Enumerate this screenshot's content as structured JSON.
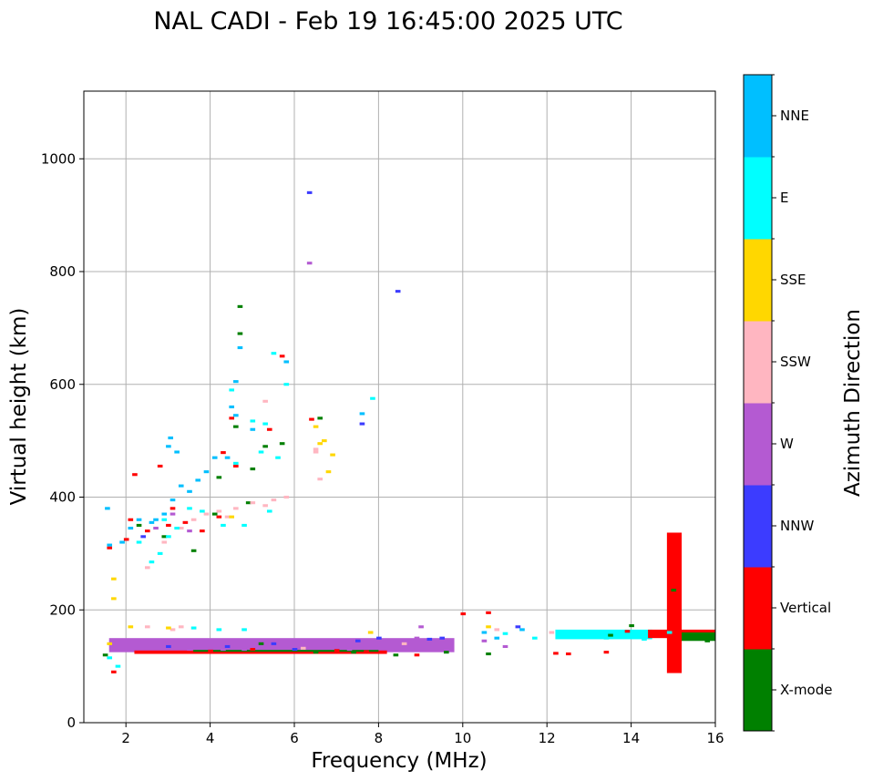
{
  "chart_data": {
    "type": "scatter",
    "title": "NAL CADI - Feb 19 16:45:00 2025 UTC",
    "xlabel": "Frequency (MHz)",
    "ylabel": "Virtual height (km)",
    "xlim": [
      1,
      16
    ],
    "ylim": [
      0,
      1120
    ],
    "xticks": [
      2,
      4,
      6,
      8,
      10,
      12,
      14,
      16
    ],
    "yticks": [
      0,
      200,
      400,
      600,
      800,
      1000
    ],
    "grid": true,
    "cell_size": {
      "freq_mhz": 0.1,
      "height_km": 5
    },
    "colorbar": {
      "label": "Azimuth Direction",
      "categories": [
        {
          "name": "X-mode",
          "color": "#008000"
        },
        {
          "name": "Vertical",
          "color": "#ff0000"
        },
        {
          "name": "NNW",
          "color": "#3c3cff"
        },
        {
          "name": "W",
          "color": "#b45ad2"
        },
        {
          "name": "SSW",
          "color": "#ffb6c1"
        },
        {
          "name": "SSE",
          "color": "#ffd700"
        },
        {
          "name": "E",
          "color": "#00ffff"
        },
        {
          "name": "NNE",
          "color": "#00bfff"
        }
      ]
    },
    "series": [
      {
        "name": "X-mode",
        "points": [
          [
            3.6,
            305
          ],
          [
            4.1,
            370
          ],
          [
            4.6,
            525
          ],
          [
            4.7,
            738
          ],
          [
            4.7,
            690
          ],
          [
            4.9,
            390
          ],
          [
            5.3,
            490
          ],
          [
            5.7,
            495
          ],
          [
            6.6,
            540
          ],
          [
            2.3,
            350
          ],
          [
            2.9,
            330
          ],
          [
            1.5,
            120
          ],
          [
            5.2,
            140
          ],
          [
            6.5,
            125
          ],
          [
            8.4,
            120
          ],
          [
            9.6,
            125
          ],
          [
            10.6,
            122
          ],
          [
            13.5,
            155
          ],
          [
            14.0,
            172
          ],
          [
            15.0,
            235
          ],
          [
            15.5,
            150
          ],
          [
            15.8,
            145
          ],
          [
            4.2,
            435
          ],
          [
            5.0,
            450
          ],
          [
            7.4,
            125
          ]
        ]
      },
      {
        "name": "Vertical",
        "points": [
          [
            2.2,
            440
          ],
          [
            2.8,
            455
          ],
          [
            3.1,
            380
          ],
          [
            3.4,
            355
          ],
          [
            3.8,
            340
          ],
          [
            4.2,
            365
          ],
          [
            4.5,
            540
          ],
          [
            5.4,
            520
          ],
          [
            5.7,
            650
          ],
          [
            4.3,
            479
          ],
          [
            4.6,
            455
          ],
          [
            2.0,
            325
          ],
          [
            1.6,
            310
          ],
          [
            1.7,
            90
          ],
          [
            3.5,
            125
          ],
          [
            4.0,
            127
          ],
          [
            5.0,
            130
          ],
          [
            7.0,
            128
          ],
          [
            7.7,
            126
          ],
          [
            8.9,
            120
          ],
          [
            10.0,
            193
          ],
          [
            10.6,
            195
          ],
          [
            12.2,
            123
          ],
          [
            12.5,
            122
          ],
          [
            13.4,
            125
          ],
          [
            13.9,
            162
          ],
          [
            2.5,
            340
          ],
          [
            3.0,
            350
          ],
          [
            6.4,
            538
          ],
          [
            2.1,
            360
          ]
        ]
      },
      {
        "name": "NNW",
        "points": [
          [
            6.35,
            940
          ],
          [
            8.45,
            765
          ],
          [
            7.6,
            530
          ],
          [
            2.4,
            330
          ],
          [
            6.0,
            130
          ],
          [
            7.5,
            145
          ],
          [
            8.0,
            150
          ],
          [
            9.5,
            150
          ],
          [
            11.3,
            170
          ],
          [
            4.4,
            135
          ],
          [
            5.5,
            140
          ],
          [
            3.0,
            135
          ],
          [
            9.2,
            148
          ]
        ]
      },
      {
        "name": "W",
        "points": [
          [
            6.35,
            815
          ],
          [
            2.7,
            345
          ],
          [
            3.5,
            340
          ],
          [
            3.1,
            370
          ],
          [
            5.2,
            135
          ],
          [
            5.6,
            145
          ],
          [
            6.6,
            135
          ],
          [
            6.9,
            140
          ],
          [
            7.3,
            130
          ],
          [
            8.3,
            140
          ],
          [
            8.9,
            150
          ],
          [
            9.0,
            170
          ],
          [
            10.5,
            145
          ],
          [
            11.0,
            135
          ],
          [
            3.5,
            130
          ],
          [
            2.8,
            140
          ],
          [
            4.3,
            130
          ],
          [
            3.9,
            140
          ],
          [
            4.8,
            130
          ]
        ]
      },
      {
        "name": "SSW",
        "points": [
          [
            2.5,
            275
          ],
          [
            2.9,
            320
          ],
          [
            3.3,
            345
          ],
          [
            3.6,
            360
          ],
          [
            3.9,
            370
          ],
          [
            4.2,
            375
          ],
          [
            4.6,
            380
          ],
          [
            5.0,
            390
          ],
          [
            5.3,
            385
          ],
          [
            5.5,
            395
          ],
          [
            5.8,
            400
          ],
          [
            6.5,
            485
          ],
          [
            6.6,
            432
          ],
          [
            6.5,
            480
          ],
          [
            3.1,
            165
          ],
          [
            3.6,
            168
          ],
          [
            3.3,
            170
          ],
          [
            2.5,
            170
          ],
          [
            8.6,
            140
          ],
          [
            10.8,
            165
          ],
          [
            12.1,
            160
          ],
          [
            6.2,
            132
          ],
          [
            5.3,
            570
          ],
          [
            4.4,
            365
          ]
        ]
      },
      {
        "name": "SSE",
        "points": [
          [
            1.7,
            255
          ],
          [
            1.7,
            220
          ],
          [
            4.5,
            365
          ],
          [
            6.7,
            500
          ],
          [
            6.8,
            445
          ],
          [
            6.5,
            525
          ],
          [
            6.9,
            475
          ],
          [
            1.6,
            140
          ],
          [
            2.1,
            170
          ],
          [
            3.0,
            168
          ],
          [
            7.8,
            160
          ],
          [
            10.6,
            170
          ],
          [
            6.6,
            495
          ]
        ]
      },
      {
        "name": "E",
        "points": [
          [
            1.6,
            115
          ],
          [
            1.8,
            100
          ],
          [
            2.6,
            285
          ],
          [
            2.8,
            300
          ],
          [
            3.2,
            345
          ],
          [
            3.8,
            375
          ],
          [
            4.3,
            350
          ],
          [
            4.8,
            350
          ],
          [
            5.2,
            480
          ],
          [
            5.4,
            375
          ],
          [
            5.6,
            470
          ],
          [
            5.8,
            600
          ],
          [
            7.85,
            575
          ],
          [
            5.5,
            655
          ],
          [
            3.6,
            168
          ],
          [
            4.2,
            165
          ],
          [
            4.8,
            165
          ],
          [
            11.0,
            158
          ],
          [
            11.7,
            150
          ],
          [
            12.5,
            155
          ],
          [
            13.0,
            160
          ],
          [
            13.4,
            150
          ],
          [
            14.3,
            148
          ],
          [
            14.9,
            160
          ],
          [
            2.3,
            320
          ],
          [
            3.0,
            330
          ],
          [
            4.6,
            460
          ],
          [
            5.0,
            535
          ],
          [
            4.5,
            590
          ],
          [
            5.3,
            530
          ],
          [
            2.9,
            360
          ],
          [
            3.5,
            380
          ]
        ]
      },
      {
        "name": "NNE",
        "points": [
          [
            1.55,
            380
          ],
          [
            1.6,
            315
          ],
          [
            1.9,
            320
          ],
          [
            2.1,
            345
          ],
          [
            2.3,
            360
          ],
          [
            2.6,
            355
          ],
          [
            2.9,
            370
          ],
          [
            3.1,
            395
          ],
          [
            3.3,
            420
          ],
          [
            3.5,
            410
          ],
          [
            3.7,
            430
          ],
          [
            3.9,
            445
          ],
          [
            4.1,
            470
          ],
          [
            4.4,
            470
          ],
          [
            4.6,
            545
          ],
          [
            4.7,
            665
          ],
          [
            4.6,
            605
          ],
          [
            5.0,
            520
          ],
          [
            5.8,
            640
          ],
          [
            7.6,
            548
          ],
          [
            10.5,
            160
          ],
          [
            10.8,
            150
          ],
          [
            11.4,
            165
          ],
          [
            3.05,
            505
          ],
          [
            3.0,
            490
          ],
          [
            2.7,
            360
          ],
          [
            3.2,
            480
          ],
          [
            4.5,
            560
          ]
        ]
      }
    ],
    "bands": [
      {
        "name": "E-layer W",
        "color": "#b45ad2",
        "f": [
          1.6,
          9.8
        ],
        "h": [
          125,
          150
        ]
      },
      {
        "name": "E-layer Vertical",
        "color": "#ff0000",
        "f": [
          2.2,
          8.2
        ],
        "h": [
          122,
          128
        ]
      },
      {
        "name": "E-layer X-mode",
        "color": "#008000",
        "f": [
          3.6,
          8.0
        ],
        "h": [
          126,
          129
        ]
      },
      {
        "name": "Es E",
        "color": "#00ffff",
        "f": [
          12.2,
          14.5
        ],
        "h": [
          148,
          165
        ]
      },
      {
        "name": "Es Vertical",
        "color": "#ff0000",
        "f": [
          14.4,
          16.0
        ],
        "h": [
          150,
          165
        ]
      },
      {
        "name": "Es X-mode",
        "color": "#008000",
        "f": [
          15.0,
          16.0
        ],
        "h": [
          145,
          160
        ]
      },
      {
        "name": "Spike Vertical",
        "color": "#ff0000",
        "f": [
          14.85,
          15.2
        ],
        "h": [
          88,
          337
        ]
      }
    ]
  }
}
